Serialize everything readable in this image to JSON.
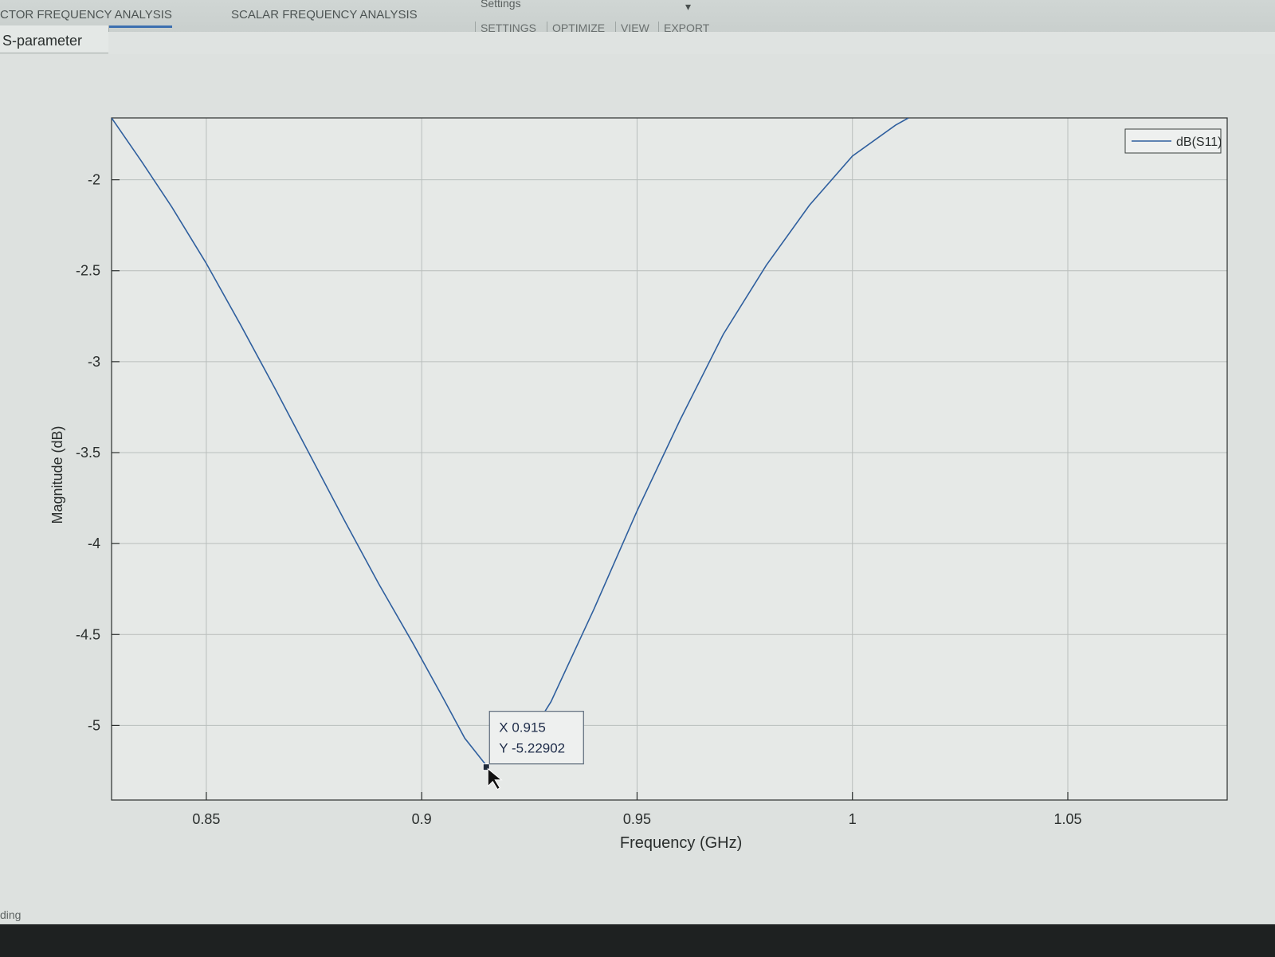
{
  "toolstrip": {
    "tabs": [
      {
        "label": "CTOR FREQUENCY ANALYSIS",
        "active": true
      },
      {
        "label": "SCALAR FREQUENCY ANALYSIS",
        "active": false
      }
    ],
    "settings_group_label": "Settings",
    "menu_items": [
      "SETTINGS",
      "OPTIMIZE",
      "VIEW",
      "EXPORT"
    ]
  },
  "panel": {
    "tab_label": "S-parameter"
  },
  "status_text": "ding",
  "chart_data": {
    "type": "line",
    "xlabel": "Frequency (GHz)",
    "ylabel": "Magnitude (dB)",
    "xlim": [
      0.828,
      1.087
    ],
    "ylim": [
      -5.41,
      -1.66
    ],
    "xticks": [
      0.85,
      0.9,
      0.95,
      1,
      1.05
    ],
    "xtick_labels": [
      "0.85",
      "0.9",
      "0.95",
      "1",
      "1.05"
    ],
    "yticks": [
      -2,
      -2.5,
      -3,
      -3.5,
      -4,
      -4.5,
      -5
    ],
    "ytick_labels": [
      "-2",
      "-2.5",
      "-3",
      "-3.5",
      "-4",
      "-4.5",
      "-5"
    ],
    "grid": true,
    "legend": {
      "position": "top-right",
      "entries": [
        "dB(S11)"
      ]
    },
    "series": [
      {
        "name": "dB(S11)",
        "color": "#2f5f9e",
        "x": [
          0.828,
          0.835,
          0.842,
          0.85,
          0.858,
          0.866,
          0.874,
          0.882,
          0.89,
          0.898,
          0.905,
          0.91,
          0.915,
          0.92,
          0.925,
          0.93,
          0.94,
          0.95,
          0.96,
          0.97,
          0.98,
          0.99,
          1.0,
          1.01,
          1.013
        ],
        "y": [
          -1.66,
          -1.9,
          -2.15,
          -2.46,
          -2.8,
          -3.15,
          -3.51,
          -3.87,
          -4.22,
          -4.55,
          -4.85,
          -5.07,
          -5.22,
          -5.16,
          -5.06,
          -4.87,
          -4.36,
          -3.82,
          -3.32,
          -2.85,
          -2.47,
          -2.14,
          -1.87,
          -1.7,
          -1.66
        ]
      }
    ],
    "datatip": {
      "x": 0.915,
      "y": -5.22902,
      "x_label": "X 0.915",
      "y_label": "Y -5.22902"
    }
  }
}
